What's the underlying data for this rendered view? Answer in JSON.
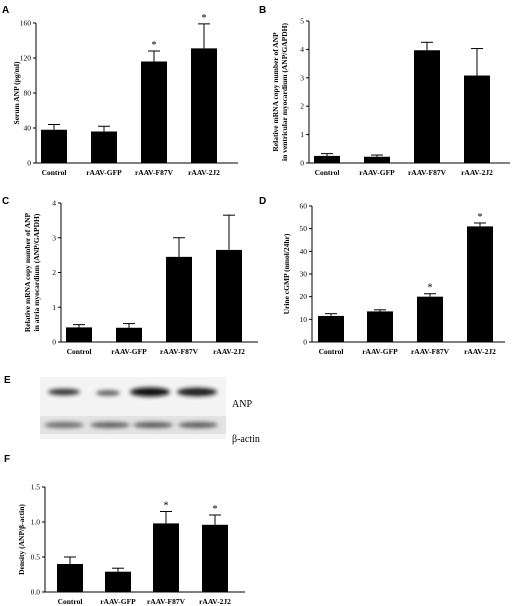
{
  "panels": {
    "A": "A",
    "B": "B",
    "C": "C",
    "D": "D",
    "E": "E",
    "F": "F"
  },
  "western_blot": {
    "band_labels": [
      "ANP",
      "β-actin"
    ]
  },
  "chart_data": [
    {
      "id": "A",
      "type": "bar",
      "categories": [
        "Control",
        "rAAV-GFP",
        "rAAV-F87V",
        "rAAV-2J2"
      ],
      "values": [
        38,
        36,
        116,
        131
      ],
      "errors": [
        6,
        6,
        12,
        28
      ],
      "significance": [
        "",
        "",
        "*",
        "*"
      ],
      "ylabel": "Serum ANP (pg/ml)",
      "ylim": [
        0,
        160
      ],
      "yticks": [
        0,
        40,
        80,
        120,
        160
      ],
      "tick_labels": [
        "0",
        "40",
        "80",
        "120",
        "160"
      ]
    },
    {
      "id": "B",
      "type": "bar",
      "categories": [
        "Control",
        "rAAV-GFP",
        "rAAV-F87V",
        "rAAV-2J2"
      ],
      "values": [
        0.25,
        0.22,
        3.97,
        3.08
      ],
      "errors": [
        0.08,
        0.06,
        0.28,
        0.95
      ],
      "significance": [
        "",
        "",
        "",
        ""
      ],
      "ylabel": "Relative mRNA copy number of ANP|in ventricular myocardium (ANP/GAPDH)",
      "ylim": [
        0,
        5
      ],
      "yticks": [
        0,
        1,
        2,
        3,
        4,
        5
      ],
      "tick_labels": [
        "0",
        "1",
        "2",
        "3",
        "4",
        "5"
      ]
    },
    {
      "id": "C",
      "type": "bar",
      "categories": [
        "Control",
        "rAAV-GFP",
        "rAAV-F87V",
        "rAAV-2J2"
      ],
      "values": [
        0.42,
        0.41,
        2.45,
        2.65
      ],
      "errors": [
        0.08,
        0.12,
        0.55,
        1.0
      ],
      "significance": [
        "",
        "",
        "",
        ""
      ],
      "ylabel": "Relative mRNA copy number of ANP|in atria myocardium (ANP/GAPDH)",
      "ylim": [
        0,
        4
      ],
      "yticks": [
        0,
        1,
        2,
        3,
        4
      ],
      "tick_labels": [
        "0",
        "1",
        "2",
        "3",
        "4"
      ]
    },
    {
      "id": "D",
      "type": "bar",
      "categories": [
        "Control",
        "rAAV-GFP",
        "rAAV-F87V",
        "rAAV-2J2"
      ],
      "values": [
        11.5,
        13.5,
        20,
        51
      ],
      "errors": [
        1,
        0.7,
        1.3,
        1.5
      ],
      "significance": [
        "",
        "",
        "*",
        "*"
      ],
      "ylabel": "Urine cGMP (nmol/24hr)",
      "ylim": [
        0,
        60
      ],
      "yticks": [
        0,
        10,
        20,
        30,
        40,
        50,
        60
      ],
      "tick_labels": [
        "0",
        "10",
        "20",
        "30",
        "40",
        "50",
        "60"
      ]
    },
    {
      "id": "F",
      "type": "bar",
      "categories": [
        "Control",
        "rAAV-GFP",
        "rAAV-F87V",
        "rAAV-2J2"
      ],
      "values": [
        0.4,
        0.29,
        0.98,
        0.96
      ],
      "errors": [
        0.1,
        0.05,
        0.17,
        0.14
      ],
      "significance": [
        "",
        "",
        "*",
        "*"
      ],
      "ylabel": "Density (ANP/β-actin)",
      "ylim": [
        0,
        1.5
      ],
      "yticks": [
        0,
        0.5,
        1.0,
        1.5
      ],
      "tick_labels": [
        "0.0",
        "0.5",
        "1.0",
        "1.5"
      ]
    }
  ]
}
